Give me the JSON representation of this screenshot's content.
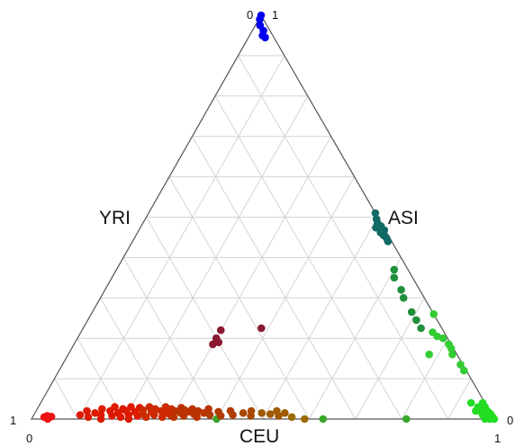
{
  "chart_data": {
    "type": "scatter",
    "subtype": "ternary",
    "grid": true,
    "grid_divisions": 10,
    "axes": {
      "left": {
        "label": "YRI",
        "tick_top": "0",
        "tick_bottom": "1"
      },
      "right": {
        "label": "ASI",
        "tick_top": "1",
        "tick_bottom": "0"
      },
      "bottom": {
        "label": "CEU",
        "tick_left": "0",
        "tick_right": "1"
      }
    },
    "value_order": [
      "ASI",
      "CEU",
      "YRI"
    ],
    "points": [
      [
        1.0,
        0.0,
        0.0,
        "#0000ee"
      ],
      [
        0.99,
        0.002,
        0.008,
        "#0000ee"
      ],
      [
        0.975,
        0.01,
        0.015,
        "#0000ee"
      ],
      [
        0.962,
        0.024,
        0.014,
        "#0000ee"
      ],
      [
        0.95,
        0.028,
        0.022,
        "#0000ee"
      ],
      [
        0.945,
        0.036,
        0.019,
        "#0000ee"
      ],
      [
        0.51,
        0.49,
        0.0,
        "#116a66"
      ],
      [
        0.495,
        0.5,
        0.005,
        "#116a66"
      ],
      [
        0.485,
        0.507,
        0.008,
        "#116a66"
      ],
      [
        0.478,
        0.518,
        0.004,
        "#116a66"
      ],
      [
        0.468,
        0.53,
        0.002,
        "#116a66"
      ],
      [
        0.455,
        0.535,
        0.01,
        "#116a66"
      ],
      [
        0.448,
        0.545,
        0.007,
        "#116a66"
      ],
      [
        0.44,
        0.552,
        0.008,
        "#116a66"
      ],
      [
        0.462,
        0.525,
        0.013,
        "#116a66"
      ],
      [
        0.474,
        0.509,
        0.017,
        "#116a66"
      ],
      [
        0.37,
        0.6,
        0.03,
        "#1f8f3a"
      ],
      [
        0.35,
        0.61,
        0.04,
        "#1f8f3a"
      ],
      [
        0.32,
        0.64,
        0.04,
        "#1f8f3a"
      ],
      [
        0.3,
        0.655,
        0.045,
        "#1f8f3a"
      ],
      [
        0.265,
        0.69,
        0.045,
        "#1f8f3a"
      ],
      [
        0.245,
        0.71,
        0.045,
        "#1f8f3a"
      ],
      [
        0.225,
        0.73,
        0.045,
        "#1f8f3a"
      ],
      [
        0.26,
        0.74,
        0.0,
        "#33cc33"
      ],
      [
        0.215,
        0.76,
        0.025,
        "#33cc33"
      ],
      [
        0.205,
        0.775,
        0.02,
        "#33cc33"
      ],
      [
        0.2,
        0.79,
        0.01,
        "#33cc33"
      ],
      [
        0.16,
        0.78,
        0.06,
        "#33cc33"
      ],
      [
        0.185,
        0.81,
        0.005,
        "#33cc33"
      ],
      [
        0.175,
        0.82,
        0.005,
        "#33cc33"
      ],
      [
        0.16,
        0.83,
        0.01,
        "#33cc33"
      ],
      [
        0.135,
        0.86,
        0.005,
        "#33cc33"
      ],
      [
        0.12,
        0.875,
        0.005,
        "#33cc33"
      ],
      [
        0.0,
        0.4,
        0.6,
        "#3aa52a"
      ],
      [
        0.0,
        0.63,
        0.37,
        "#3aa52a"
      ],
      [
        0.0,
        0.81,
        0.19,
        "#3aa52a"
      ],
      [
        0.04,
        0.93,
        0.03,
        "#22dd22"
      ],
      [
        0.02,
        0.95,
        0.03,
        "#22dd22"
      ],
      [
        0.03,
        0.95,
        0.02,
        "#22dd22"
      ],
      [
        0.04,
        0.955,
        0.005,
        "#22dd22"
      ],
      [
        0.025,
        0.96,
        0.015,
        "#22dd22"
      ],
      [
        0.03,
        0.965,
        0.005,
        "#22dd22"
      ],
      [
        0.015,
        0.97,
        0.015,
        "#22dd22"
      ],
      [
        0.02,
        0.975,
        0.005,
        "#22dd22"
      ],
      [
        0.01,
        0.98,
        0.01,
        "#22dd22"
      ],
      [
        0.015,
        0.982,
        0.003,
        "#22dd22"
      ],
      [
        0.008,
        0.985,
        0.007,
        "#22dd22"
      ],
      [
        0.012,
        0.986,
        0.002,
        "#22dd22"
      ],
      [
        0.005,
        0.99,
        0.005,
        "#22dd22"
      ],
      [
        0.008,
        0.99,
        0.002,
        "#22dd22"
      ],
      [
        0.003,
        0.993,
        0.004,
        "#22dd22"
      ],
      [
        0.004,
        0.995,
        0.001,
        "#22dd22"
      ],
      [
        0.002,
        0.997,
        0.001,
        "#22dd22"
      ],
      [
        0.0,
        1.0,
        0.0,
        "#22dd22"
      ],
      [
        0.01,
        0.97,
        0.02,
        "#22dd22"
      ],
      [
        0.006,
        0.978,
        0.016,
        "#22dd22"
      ],
      [
        0.018,
        0.962,
        0.02,
        "#22dd22"
      ],
      [
        0.012,
        0.975,
        0.013,
        "#22dd22"
      ],
      [
        0.0,
        0.99,
        0.01,
        "#22dd22"
      ],
      [
        0.0,
        0.98,
        0.02,
        "#22dd22"
      ],
      [
        0.22,
        0.3,
        0.48,
        "#8b1a30"
      ],
      [
        0.2,
        0.3,
        0.5,
        "#8b1a30"
      ],
      [
        0.185,
        0.3,
        0.515,
        "#8b1a30"
      ],
      [
        0.19,
        0.31,
        0.5,
        "#8b1a30"
      ],
      [
        0.225,
        0.385,
        0.39,
        "#8b1a30"
      ],
      [
        0.005,
        0.025,
        0.97,
        "#ee1111"
      ],
      [
        0.008,
        0.03,
        0.962,
        "#ee1111"
      ],
      [
        0.0,
        0.035,
        0.965,
        "#ee1111"
      ],
      [
        0.006,
        0.04,
        0.954,
        "#ee1111"
      ],
      [
        0.01,
        0.1,
        0.89,
        "#dd1a00"
      ],
      [
        0.02,
        0.11,
        0.87,
        "#dd1a00"
      ],
      [
        0.005,
        0.12,
        0.875,
        "#dd1a00"
      ],
      [
        0.015,
        0.13,
        0.855,
        "#dd1a00"
      ],
      [
        0.025,
        0.14,
        0.835,
        "#dd1a00"
      ],
      [
        0.01,
        0.145,
        0.845,
        "#dd1a00"
      ],
      [
        0.0,
        0.15,
        0.85,
        "#dd1a00"
      ],
      [
        0.02,
        0.16,
        0.82,
        "#dd1a00"
      ],
      [
        0.03,
        0.165,
        0.805,
        "#dd1a00"
      ],
      [
        0.008,
        0.17,
        0.822,
        "#dd1a00"
      ],
      [
        0.015,
        0.18,
        0.805,
        "#dd1a00"
      ],
      [
        0.025,
        0.185,
        0.79,
        "#dd1a00"
      ],
      [
        0.005,
        0.19,
        0.805,
        "#dd1a00"
      ],
      [
        0.02,
        0.195,
        0.785,
        "#dd1a00"
      ],
      [
        0.03,
        0.2,
        0.77,
        "#dd1a00"
      ],
      [
        0.01,
        0.205,
        0.785,
        "#dd1a00"
      ],
      [
        0.0,
        0.21,
        0.79,
        "#dd1a00"
      ],
      [
        0.018,
        0.215,
        0.767,
        "#dd1a00"
      ],
      [
        0.028,
        0.22,
        0.752,
        "#dd1a00"
      ],
      [
        0.008,
        0.225,
        0.767,
        "#dd1a00"
      ],
      [
        0.022,
        0.23,
        0.748,
        "#cc2a00"
      ],
      [
        0.012,
        0.235,
        0.753,
        "#cc2a00"
      ],
      [
        0.03,
        0.24,
        0.73,
        "#cc2a00"
      ],
      [
        0.005,
        0.245,
        0.75,
        "#cc2a00"
      ],
      [
        0.018,
        0.25,
        0.732,
        "#cc2a00"
      ],
      [
        0.025,
        0.255,
        0.72,
        "#cc2a00"
      ],
      [
        0.01,
        0.26,
        0.73,
        "#cc2a00"
      ],
      [
        0.02,
        0.27,
        0.71,
        "#cc2a00"
      ],
      [
        0.03,
        0.275,
        0.695,
        "#cc2a00"
      ],
      [
        0.005,
        0.28,
        0.715,
        "#cc2a00"
      ],
      [
        0.015,
        0.285,
        0.7,
        "#cc2a00"
      ],
      [
        0.025,
        0.29,
        0.685,
        "#cc2a00"
      ],
      [
        0.01,
        0.295,
        0.695,
        "#cc2a00"
      ],
      [
        0.02,
        0.3,
        0.68,
        "#bb3300"
      ],
      [
        0.005,
        0.305,
        0.69,
        "#bb3300"
      ],
      [
        0.028,
        0.31,
        0.662,
        "#bb3300"
      ],
      [
        0.015,
        0.315,
        0.67,
        "#bb3300"
      ],
      [
        0.022,
        0.32,
        0.658,
        "#bb3300"
      ],
      [
        0.008,
        0.325,
        0.667,
        "#bb3300"
      ],
      [
        0.018,
        0.33,
        0.652,
        "#bb3300"
      ],
      [
        0.025,
        0.335,
        0.64,
        "#bb3300"
      ],
      [
        0.012,
        0.345,
        0.643,
        "#bb3300"
      ],
      [
        0.02,
        0.35,
        0.63,
        "#bb3300"
      ],
      [
        0.005,
        0.355,
        0.64,
        "#bb3300"
      ],
      [
        0.015,
        0.365,
        0.62,
        "#bb3300"
      ],
      [
        0.025,
        0.37,
        0.605,
        "#bb3300"
      ],
      [
        0.01,
        0.38,
        0.61,
        "#b03a00"
      ],
      [
        0.018,
        0.395,
        0.587,
        "#b03a00"
      ],
      [
        0.008,
        0.405,
        0.587,
        "#b03a00"
      ],
      [
        0.02,
        0.42,
        0.56,
        "#b03a00"
      ],
      [
        0.01,
        0.43,
        0.56,
        "#b03a00"
      ],
      [
        0.015,
        0.45,
        0.535,
        "#a84800"
      ],
      [
        0.02,
        0.465,
        0.515,
        "#a84800"
      ],
      [
        0.008,
        0.47,
        0.522,
        "#a84800"
      ],
      [
        0.015,
        0.49,
        0.495,
        "#a05a00"
      ],
      [
        0.012,
        0.51,
        0.478,
        "#a05a00"
      ],
      [
        0.02,
        0.52,
        0.46,
        "#a05a00"
      ],
      [
        0.008,
        0.53,
        0.462,
        "#a05a00"
      ],
      [
        0.015,
        0.54,
        0.445,
        "#a05a00"
      ],
      [
        0.005,
        0.56,
        0.435,
        "#9b6a00"
      ],
      [
        0.0,
        0.59,
        0.41,
        "#9b6a00"
      ]
    ]
  }
}
